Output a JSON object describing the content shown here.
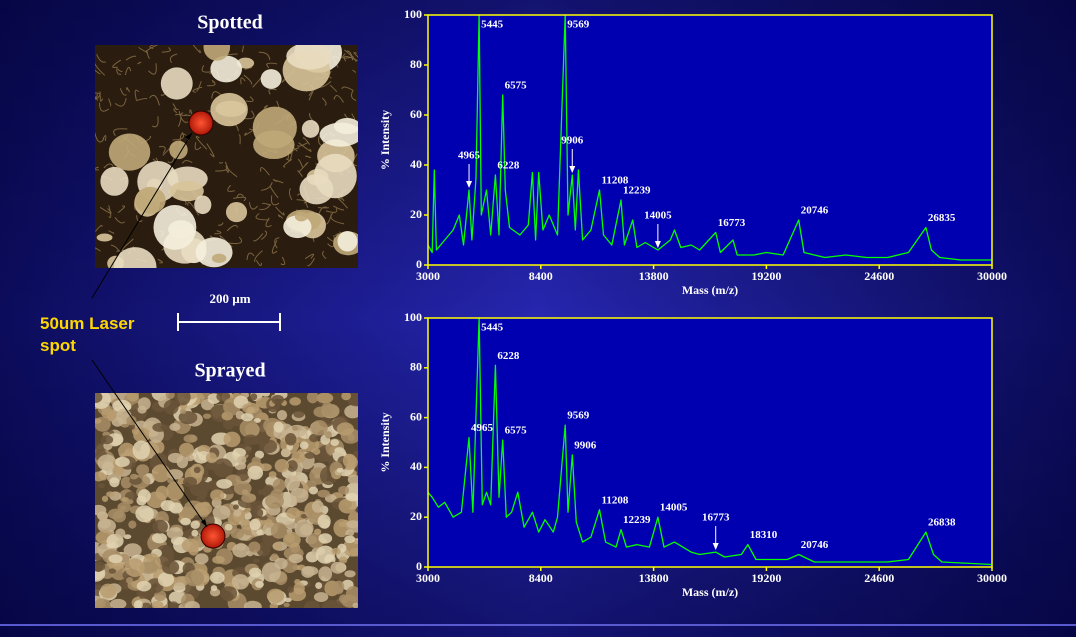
{
  "slide": {
    "top_image_title": "Spotted",
    "bottom_image_title": "Sprayed",
    "scale_bar": "200 µm",
    "laser_label": "50um Laser spot"
  },
  "chart_data": [
    {
      "type": "line",
      "x_label": "Mass (m/z)",
      "y_label": "% Intensity",
      "color": "#00ff00",
      "xlim": [
        3000,
        30000
      ],
      "xticks": [
        3000,
        8400,
        13800,
        19200,
        24600,
        30000
      ],
      "ylim": [
        0,
        100
      ],
      "yticks": [
        0,
        20,
        40,
        60,
        80,
        100
      ],
      "x": [
        3000,
        3200,
        3300,
        3400,
        3800,
        4200,
        4500,
        4700,
        4965,
        5100,
        5300,
        5445,
        5550,
        5800,
        6000,
        6228,
        6400,
        6575,
        6700,
        6900,
        7400,
        7800,
        8000,
        8150,
        8300,
        8500,
        8800,
        9200,
        9569,
        9700,
        9906,
        10050,
        10200,
        10400,
        10800,
        11208,
        11400,
        11800,
        12239,
        12400,
        12800,
        13000,
        13400,
        14005,
        14600,
        14800,
        15100,
        15600,
        16000,
        16773,
        17000,
        17600,
        17800,
        18600,
        19200,
        20000,
        20746,
        21000,
        22000,
        23000,
        24000,
        25000,
        26000,
        26835,
        27100,
        27500,
        28500,
        30000
      ],
      "values": [
        8,
        5,
        38,
        6,
        10,
        14,
        20,
        8,
        30,
        10,
        35,
        100,
        20,
        30,
        12,
        36,
        12,
        68,
        30,
        15,
        12,
        16,
        37,
        10,
        37,
        14,
        20,
        12,
        100,
        20,
        36,
        14,
        38,
        10,
        14,
        30,
        12,
        8,
        26,
        8,
        18,
        7,
        9,
        6,
        10,
        14,
        7,
        8,
        6,
        13,
        5,
        10,
        4,
        4,
        5,
        4,
        18,
        5,
        3,
        4,
        3,
        3,
        5,
        15,
        6,
        3,
        2,
        2
      ],
      "peaks": [
        {
          "mass": 5445
        },
        {
          "mass": 9569
        },
        {
          "mass": 6575
        },
        {
          "mass": 4965,
          "arrow": true
        },
        {
          "mass": 6228
        },
        {
          "mass": 9906,
          "arrow": true
        },
        {
          "mass": 11208
        },
        {
          "mass": 12239
        },
        {
          "mass": 14005,
          "arrow": true
        },
        {
          "mass": 16773
        },
        {
          "mass": 20746
        },
        {
          "mass": 26835
        }
      ]
    },
    {
      "type": "line",
      "x_label": "Mass (m/z)",
      "y_label": "% Intensity",
      "color": "#00ff00",
      "xlim": [
        3000,
        30000
      ],
      "xticks": [
        3000,
        8400,
        13800,
        19200,
        24600,
        30000
      ],
      "ylim": [
        0,
        100
      ],
      "yticks": [
        0,
        20,
        40,
        60,
        80,
        100
      ],
      "x": [
        3000,
        3200,
        3500,
        3800,
        4200,
        4600,
        4965,
        5150,
        5445,
        5600,
        5800,
        6000,
        6228,
        6400,
        6575,
        6750,
        7000,
        7300,
        7600,
        8000,
        8300,
        8600,
        9000,
        9200,
        9569,
        9700,
        9906,
        10100,
        10400,
        10800,
        11208,
        11500,
        12000,
        12239,
        12500,
        13000,
        13600,
        14005,
        14300,
        14800,
        15200,
        15600,
        16000,
        16773,
        17200,
        18000,
        18310,
        18700,
        19500,
        20200,
        20746,
        21500,
        23000,
        25000,
        26000,
        26838,
        27200,
        27600,
        30000
      ],
      "values": [
        30,
        28,
        24,
        26,
        20,
        22,
        52,
        22,
        100,
        25,
        30,
        25,
        81,
        28,
        51,
        20,
        22,
        30,
        16,
        22,
        14,
        19,
        14,
        20,
        57,
        22,
        45,
        18,
        10,
        12,
        23,
        10,
        8,
        15,
        8,
        9,
        8,
        20,
        8,
        10,
        8,
        6,
        5,
        6,
        4,
        5,
        9,
        3,
        3,
        3,
        5,
        2,
        2,
        2,
        3,
        14,
        5,
        2,
        1
      ],
      "peaks": [
        {
          "mass": 5445
        },
        {
          "mass": 6228
        },
        {
          "mass": 4965
        },
        {
          "mass": 6575
        },
        {
          "mass": 9569
        },
        {
          "mass": 9906
        },
        {
          "mass": 11208
        },
        {
          "mass": 12239
        },
        {
          "mass": 14005
        },
        {
          "mass": 16773,
          "arrow": true
        },
        {
          "mass": 18310
        },
        {
          "mass": 20746
        },
        {
          "mass": 26838
        }
      ]
    }
  ]
}
